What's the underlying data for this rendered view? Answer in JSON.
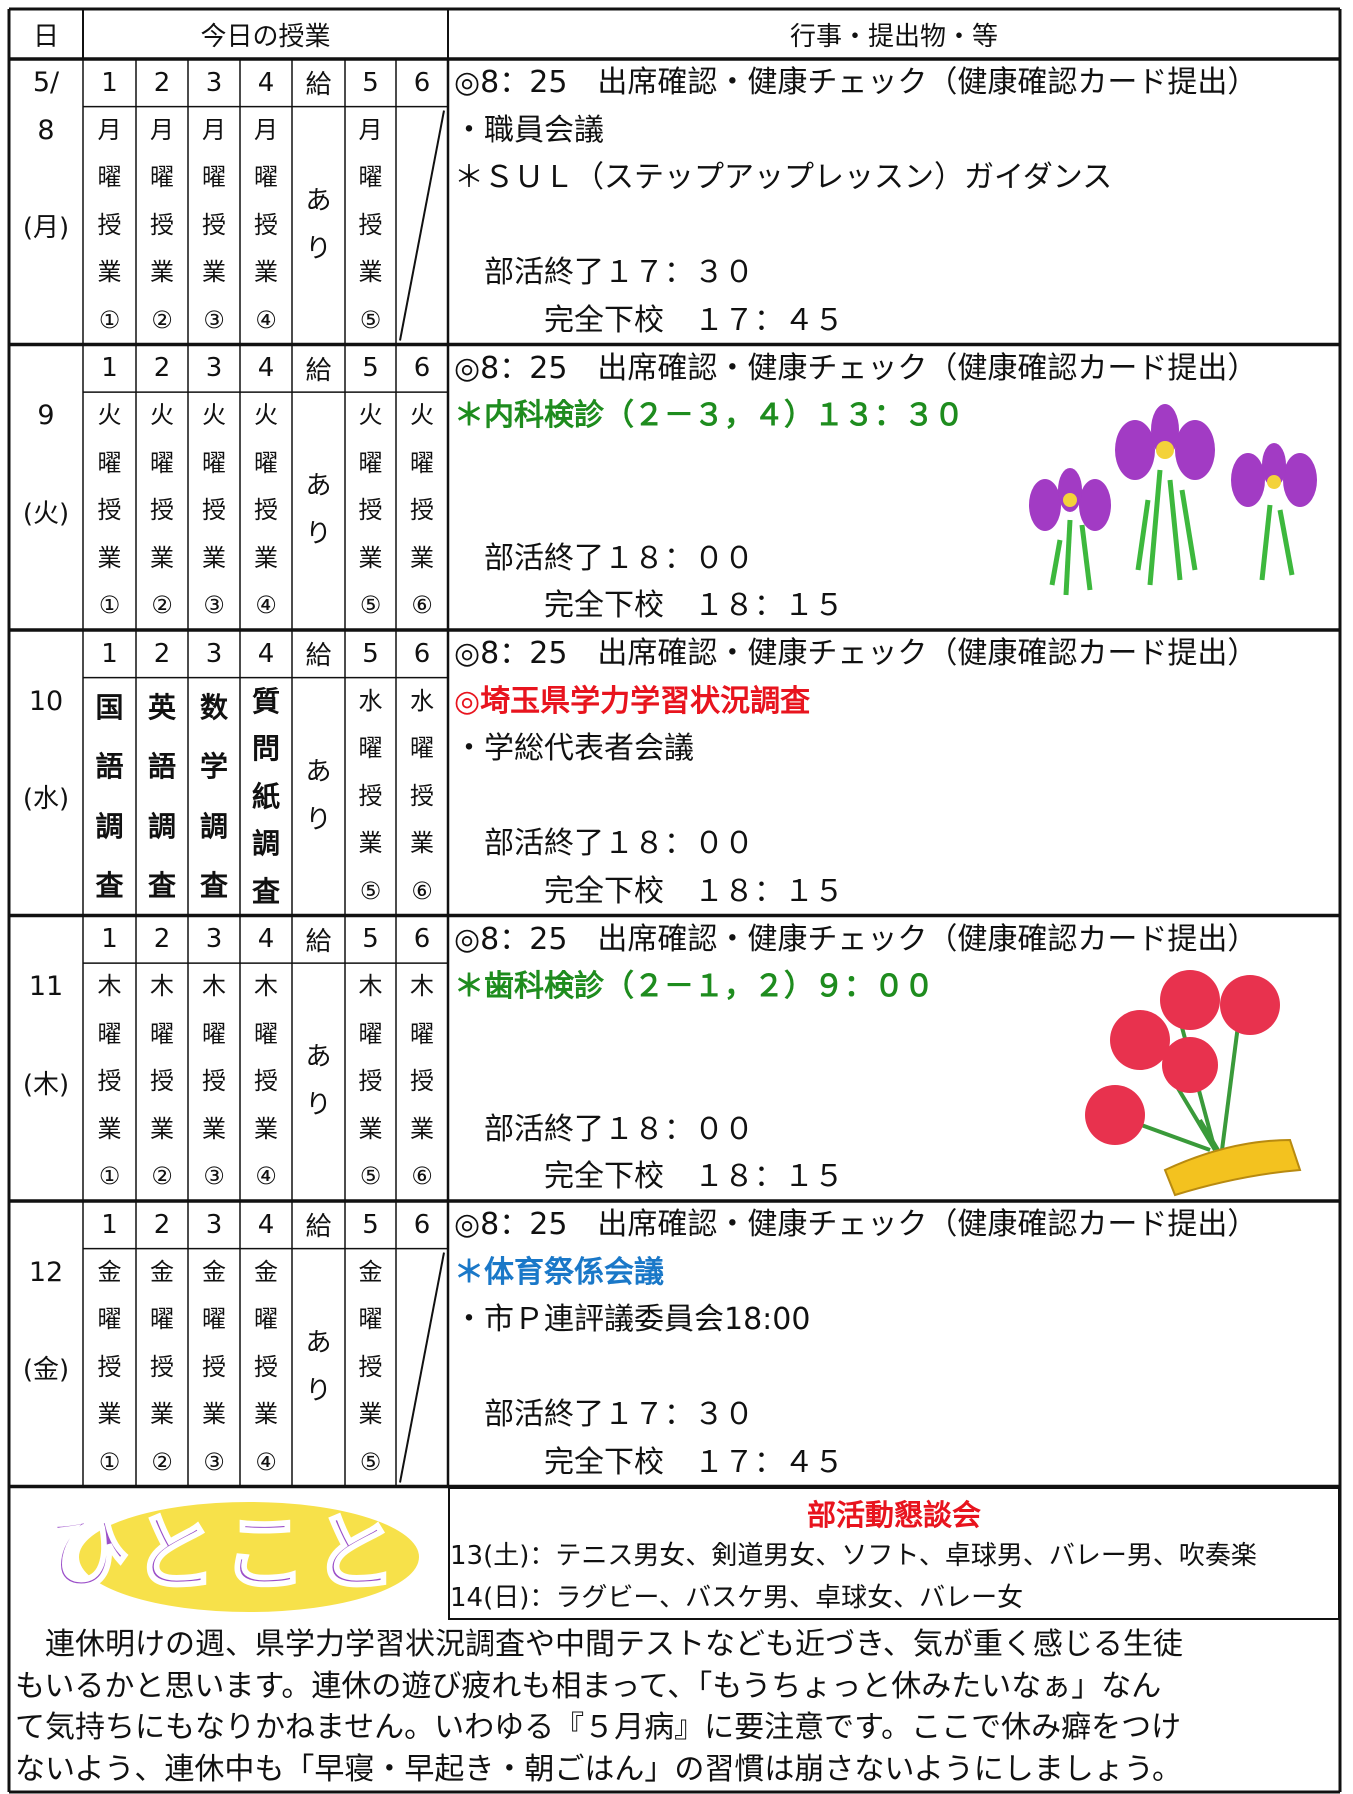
{
  "header": {
    "date": "日",
    "classes": "今日の授業",
    "events": "行事・提出物・等"
  },
  "days": [
    {
      "month": "5/",
      "day": "8",
      "weekday": "(月)",
      "periods": [
        "1",
        "2",
        "3",
        "4",
        "給",
        "5",
        "6"
      ],
      "columns": [
        "月曜授業①",
        "月曜授業②",
        "月曜授業③",
        "月曜授業④",
        "あり",
        "月曜授業⑤",
        null
      ],
      "events": [
        "◎8：25　出席確認・健康チェック（健康確認カード提出）",
        "・職員会議",
        "＊ＳＵＬ（ステップアップレッスン）ガイダンス",
        null,
        "　部活終了１７：３０",
        "　　　完全下校　１７：４５"
      ]
    },
    {
      "day": "9",
      "weekday": "(火)",
      "periods": [
        "1",
        "2",
        "3",
        "4",
        "給",
        "5",
        "6"
      ],
      "columns": [
        "火曜授業①",
        "火曜授業②",
        "火曜授業③",
        "火曜授業④",
        "あり",
        "火曜授業⑤",
        "火曜授業⑥"
      ],
      "events": [
        "◎8：25　出席確認・健康チェック（健康確認カード提出）",
        {
          "text": "＊内科検診（２－３，４）１３：３０",
          "color": "#1e8c1e",
          "bold": true
        },
        null,
        null,
        "　部活終了１８：００",
        "　　　完全下校　１８：１５"
      ]
    },
    {
      "day": "10",
      "weekday": "(水)",
      "periods": [
        "1",
        "2",
        "3",
        "4",
        "給",
        "5",
        "6"
      ],
      "columns": [
        {
          "text": "国語調査",
          "bold": true
        },
        {
          "text": "英語調査",
          "bold": true
        },
        {
          "text": "数学調査",
          "bold": true
        },
        {
          "text": "質問紙調査",
          "bold": true
        },
        "あり",
        "水曜授業⑤",
        "水曜授業⑥"
      ],
      "events": [
        "◎8：25　出席確認・健康チェック（健康確認カード提出）",
        {
          "text": "◎埼玉県学力学習状況調査",
          "color": "#e8141e",
          "bold": true
        },
        "・学総代表者会議",
        null,
        "　部活終了１８：００",
        "　　　完全下校　１８：１５"
      ]
    },
    {
      "day": "11",
      "weekday": "(木)",
      "periods": [
        "1",
        "2",
        "3",
        "4",
        "給",
        "5",
        "6"
      ],
      "columns": [
        "木曜授業①",
        "木曜授業②",
        "木曜授業③",
        "木曜授業④",
        "あり",
        "木曜授業⑤",
        "木曜授業⑥"
      ],
      "events": [
        "◎8：25　出席確認・健康チェック（健康確認カード提出）",
        {
          "text": "＊歯科検診（２－１，２）９：００",
          "color": "#1e8c1e",
          "bold": true
        },
        null,
        null,
        "　部活終了１８：００",
        "　　　完全下校　１８：１５"
      ]
    },
    {
      "day": "12",
      "weekday": "(金)",
      "periods": [
        "1",
        "2",
        "3",
        "4",
        "給",
        "5",
        "6"
      ],
      "columns": [
        "金曜授業①",
        "金曜授業②",
        "金曜授業③",
        "金曜授業④",
        "あり",
        "金曜授業⑤",
        null
      ],
      "events": [
        "◎8：25　出席確認・健康チェック（健康確認カード提出）",
        {
          "text": "＊体育祭係会議",
          "color": "#1a78c8",
          "bold": true
        },
        "・市Ｐ連評議委員会18:00",
        null,
        "　部活終了１７：３０",
        "　　　完全下校　１７：４５"
      ]
    }
  ],
  "logo": "ひとこと",
  "club_meeting": {
    "title": "部活動懇談会",
    "lines": [
      "13(土)：テニス男女、剣道男女、ソフト、卓球男、バレー男、吹奏楽",
      "14(日)：ラグビー、バスケ男、卓球女、バレー女"
    ]
  },
  "message": [
    "　連休明けの週、県学力学習状況調査や中間テストなども近づき、気が重く感じる生徒",
    "もいるかと思います。連休の遊び疲れも相まって、「もうちょっと休みたいなぁ」なん",
    "て気持ちにもなりかねません。いわゆる『５月病』に要注意です。ここで休み癖をつけ",
    "ないよう、連休中も「早寝・早起き・朝ごはん」の習慣は崩さないようにしましょう。"
  ]
}
